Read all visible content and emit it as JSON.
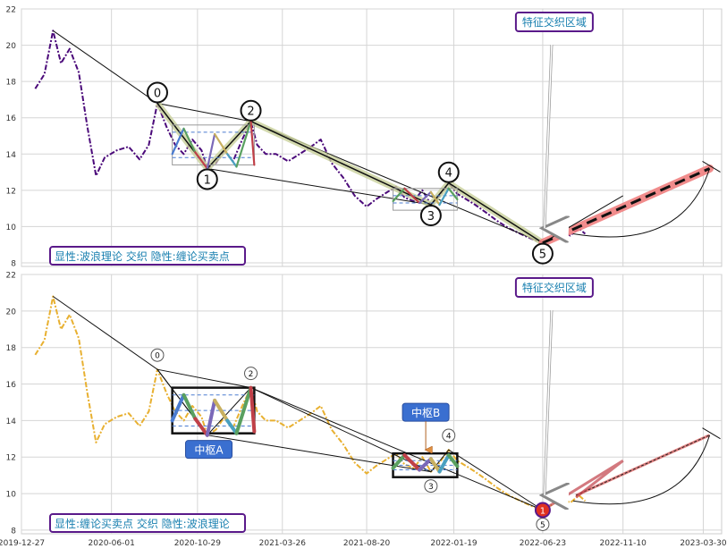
{
  "chart_data": [
    {
      "type": "line",
      "panel": "top",
      "ylim": [
        7.8,
        22
      ],
      "y_ticks": [
        "8",
        "10",
        "12",
        "14",
        "16",
        "18",
        "20",
        "22"
      ],
      "xlim": [
        "2019-12-27",
        "2023-05-01"
      ],
      "x_ticks": [
        "2019-12-27",
        "2020-06-01",
        "2020-10-29",
        "2021-03-26",
        "2021-08-20",
        "2022-01-19",
        "2022-06-23",
        "2022-11-10",
        "2023-03-30"
      ],
      "grid": true,
      "annotation_box": "特征交织区域",
      "legend_text": "显性:波浪理论 交织 隐性:缠论买卖点",
      "price_color": "#4b0a7a",
      "price_series": [
        [
          "2020-01-20",
          17.6
        ],
        [
          "2020-02-05",
          18.4
        ],
        [
          "2020-02-20",
          20.8
        ],
        [
          "2020-03-05",
          19.0
        ],
        [
          "2020-03-20",
          19.8
        ],
        [
          "2020-04-05",
          18.5
        ],
        [
          "2020-04-20",
          15.5
        ],
        [
          "2020-05-05",
          12.8
        ],
        [
          "2020-05-20",
          13.8
        ],
        [
          "2020-06-10",
          14.2
        ],
        [
          "2020-07-01",
          14.4
        ],
        [
          "2020-07-20",
          13.7
        ],
        [
          "2020-08-05",
          14.5
        ],
        [
          "2020-08-20",
          16.8
        ],
        [
          "2020-09-05",
          15.5
        ],
        [
          "2020-09-20",
          14.5
        ],
        [
          "2020-10-05",
          14.0
        ],
        [
          "2020-10-20",
          14.8
        ],
        [
          "2020-11-05",
          14.2
        ],
        [
          "2020-11-15",
          13.2
        ],
        [
          "2020-11-30",
          13.5
        ],
        [
          "2020-12-15",
          14.2
        ],
        [
          "2020-12-30",
          13.6
        ],
        [
          "2021-01-15",
          14.8
        ],
        [
          "2021-01-30",
          15.8
        ],
        [
          "2021-02-10",
          14.5
        ],
        [
          "2021-02-25",
          14.0
        ],
        [
          "2021-03-15",
          14.0
        ],
        [
          "2021-04-05",
          13.6
        ],
        [
          "2021-04-25",
          14.0
        ],
        [
          "2021-05-15",
          14.4
        ],
        [
          "2021-06-01",
          14.8
        ],
        [
          "2021-06-20",
          13.5
        ],
        [
          "2021-07-10",
          12.7
        ],
        [
          "2021-07-30",
          11.7
        ],
        [
          "2021-08-20",
          11.1
        ],
        [
          "2021-09-05",
          11.5
        ],
        [
          "2021-09-20",
          11.8
        ],
        [
          "2021-10-10",
          12.2
        ],
        [
          "2021-10-25",
          11.6
        ],
        [
          "2021-11-10",
          11.4
        ],
        [
          "2021-11-25",
          12.0
        ],
        [
          "2021-12-10",
          11.2
        ],
        [
          "2021-12-25",
          11.7
        ],
        [
          "2022-01-10",
          12.4
        ],
        [
          "2022-01-25",
          11.8
        ],
        [
          "2022-02-10",
          11.5
        ],
        [
          "2022-02-25",
          11.2
        ],
        [
          "2022-03-15",
          10.8
        ],
        [
          "2022-04-05",
          10.3
        ],
        [
          "2022-04-25",
          9.9
        ],
        [
          "2022-05-15",
          9.6
        ],
        [
          "2022-06-05",
          9.3
        ],
        [
          "2022-06-23",
          9.1
        ],
        [
          "2022-07-10",
          9.4
        ],
        [
          "2022-07-25",
          9.8
        ],
        [
          "2022-08-10",
          9.5
        ],
        [
          "2022-08-25",
          9.9
        ],
        [
          "2022-09-05",
          9.6
        ]
      ],
      "wave_points": [
        {
          "label": "0",
          "date": "2020-08-20",
          "value": 16.8
        },
        {
          "label": "1",
          "date": "2020-11-15",
          "value": 13.2
        },
        {
          "label": "2",
          "date": "2021-01-30",
          "value": 15.8
        },
        {
          "label": "3",
          "date": "2021-12-10",
          "value": 11.2
        },
        {
          "label": "4",
          "date": "2022-01-10",
          "value": 12.4
        },
        {
          "label": "5",
          "date": "2022-06-23",
          "value": 9.1
        }
      ],
      "wave_projection": [
        [
          "2022-06-23",
          9.1
        ],
        [
          "2023-04-10",
          13.2
        ]
      ],
      "trend_upper": [
        [
          "2020-02-20",
          20.8
        ],
        [
          "2020-08-20",
          16.8
        ],
        [
          "2021-01-30",
          15.8
        ],
        [
          "2022-06-23",
          9.1
        ]
      ],
      "trend_lower": [
        [
          "2020-08-20",
          16.8
        ],
        [
          "2020-11-15",
          13.2
        ],
        [
          "2021-12-10",
          11.2
        ]
      ],
      "zone_boxes": [
        {
          "x1": "2020-09-15",
          "x2": "2021-02-05",
          "y1": 13.4,
          "y2": 15.6
        },
        {
          "x1": "2021-10-05",
          "x2": "2022-01-25",
          "y1": 10.9,
          "y2": 12.1
        }
      ]
    },
    {
      "type": "line",
      "panel": "bottom",
      "ylim": [
        7.8,
        22
      ],
      "y_ticks": [
        "8",
        "10",
        "12",
        "14",
        "16",
        "18",
        "20",
        "22"
      ],
      "xlim": [
        "2019-12-27",
        "2023-05-01"
      ],
      "x_ticks": [
        "2019-12-27",
        "2020-06-01",
        "2020-10-29",
        "2021-03-26",
        "2021-08-20",
        "2022-01-19",
        "2022-06-23",
        "2022-11-10",
        "2023-03-30"
      ],
      "grid": true,
      "annotation_box": "特征交织区域",
      "legend_text": "显性:缠论买卖点 交织 隐性:波浪理论",
      "zhongshu_labels": [
        "中枢A",
        "中枢B"
      ],
      "price_color": "#e8b030",
      "highlight_color": "#e03020",
      "buy_point_label": "1",
      "zhongshu_boxes": [
        {
          "label": "中枢A",
          "x1": "2020-09-15",
          "x2": "2021-02-05",
          "y1": 13.3,
          "y2": 15.8
        },
        {
          "label": "中枢B",
          "x1": "2021-10-05",
          "x2": "2022-01-25",
          "y1": 10.9,
          "y2": 12.2
        }
      ]
    }
  ]
}
